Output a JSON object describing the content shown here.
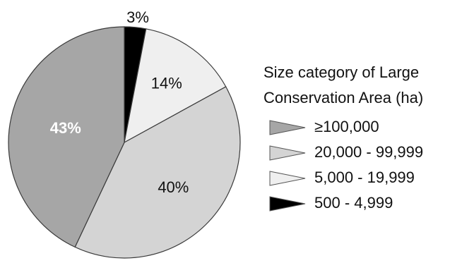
{
  "chart_data": {
    "type": "pie",
    "legend_title_lines": [
      "Size category of Large",
      "Conservation Area (ha)"
    ],
    "legend_position": "right",
    "slices": [
      {
        "label": "≥100,000",
        "value": 43,
        "pct_label": "43%",
        "color": "#a6a6a6",
        "label_color": "#ffffff"
      },
      {
        "label": "20,000 - 99,999",
        "value": 40,
        "pct_label": "40%",
        "color": "#d4d4d4",
        "label_color": "#111111"
      },
      {
        "label": "5,000 - 19,999",
        "value": 14,
        "pct_label": "14%",
        "color": "#efefef",
        "label_color": "#111111"
      },
      {
        "label": "500 - 4,999",
        "value": 3,
        "pct_label": "3%",
        "color": "#000000",
        "label_color": "#111111"
      }
    ]
  }
}
